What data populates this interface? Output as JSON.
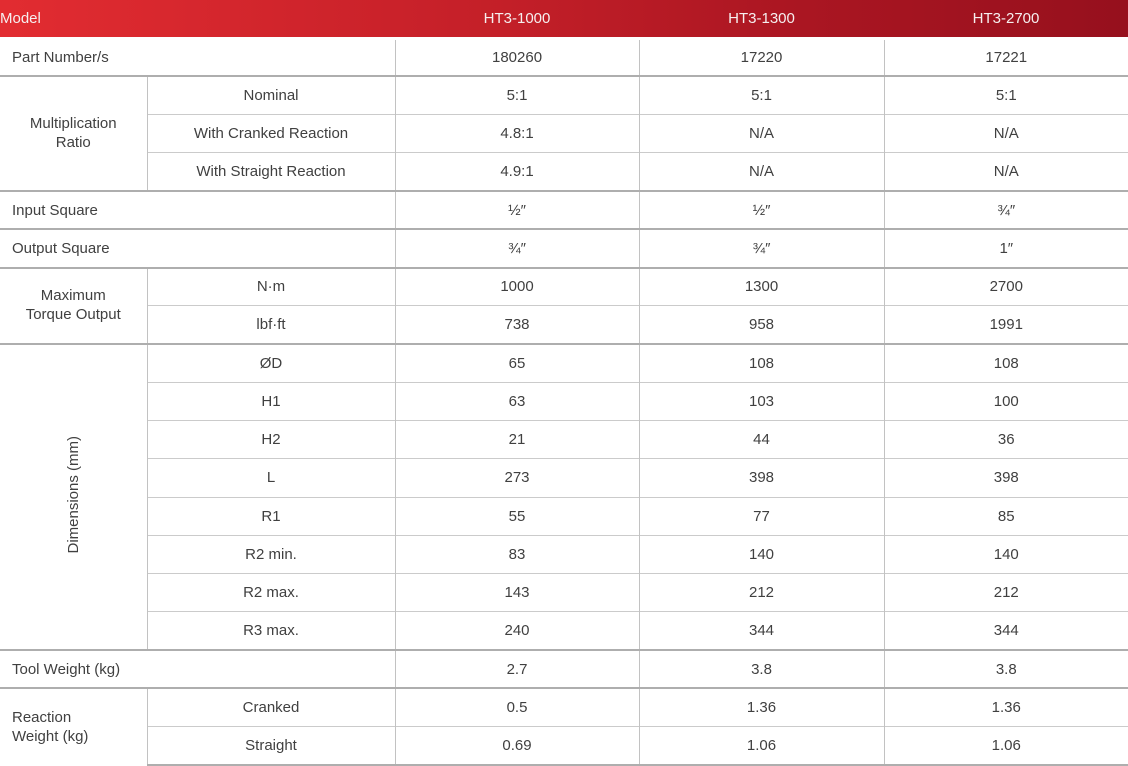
{
  "colors": {
    "header_gradient_start": "#e22c31",
    "header_gradient_end": "#96101d",
    "header_text": "#f6efef",
    "body_text": "#404040",
    "inner_border": "#cbcbcb",
    "section_border": "#aeaeae"
  },
  "table": {
    "header": {
      "model_label": "Model",
      "columns": [
        "HT3-1000",
        "HT3-1300",
        "HT3-2700"
      ]
    },
    "sections": [
      {
        "label": "Part Number/s",
        "type": "single",
        "values": [
          "180260",
          "17220",
          "17221"
        ]
      },
      {
        "label": "Multiplication Ratio",
        "type": "group",
        "rows": [
          {
            "sublabel": "Nominal",
            "values": [
              "5:1",
              "5:1",
              "5:1"
            ]
          },
          {
            "sublabel": "With Cranked Reaction",
            "values": [
              "4.8:1",
              "N/A",
              "N/A"
            ]
          },
          {
            "sublabel": "With Straight Reaction",
            "values": [
              "4.9:1",
              "N/A",
              "N/A"
            ]
          }
        ]
      },
      {
        "label": "Input Square",
        "type": "single",
        "values": [
          "½″",
          "½″",
          "¾″"
        ]
      },
      {
        "label": "Output Square",
        "type": "single",
        "values": [
          "¾″",
          "¾″",
          "1″"
        ]
      },
      {
        "label": "Maximum Torque Output",
        "type": "group",
        "rows": [
          {
            "sublabel": "N·m",
            "values": [
              "1000",
              "1300",
              "2700"
            ]
          },
          {
            "sublabel": "lbf·ft",
            "values": [
              "738",
              "958",
              "1991"
            ]
          }
        ]
      },
      {
        "label": "Dimensions (mm)",
        "type": "group",
        "vertical": true,
        "rows": [
          {
            "sublabel": "ØD",
            "values": [
              "65",
              "108",
              "108"
            ]
          },
          {
            "sublabel": "H1",
            "values": [
              "63",
              "103",
              "100"
            ]
          },
          {
            "sublabel": "H2",
            "values": [
              "21",
              "44",
              "36"
            ]
          },
          {
            "sublabel": "L",
            "values": [
              "273",
              "398",
              "398"
            ]
          },
          {
            "sublabel": "R1",
            "values": [
              "55",
              "77",
              "85"
            ]
          },
          {
            "sublabel": "R2 min.",
            "values": [
              "83",
              "140",
              "140"
            ]
          },
          {
            "sublabel": "R2 max.",
            "values": [
              "143",
              "212",
              "212"
            ]
          },
          {
            "sublabel": "R3 max.",
            "values": [
              "240",
              "344",
              "344"
            ]
          }
        ]
      },
      {
        "label": "Tool Weight (kg)",
        "type": "single",
        "values": [
          "2.7",
          "3.8",
          "3.8"
        ]
      },
      {
        "label": "Reaction Weight (kg)",
        "type": "group",
        "rows": [
          {
            "sublabel": "Cranked",
            "values": [
              "0.5",
              "1.36",
              "1.36"
            ]
          },
          {
            "sublabel": "Straight",
            "values": [
              "0.69",
              "1.06",
              "1.06"
            ]
          }
        ]
      }
    ]
  }
}
